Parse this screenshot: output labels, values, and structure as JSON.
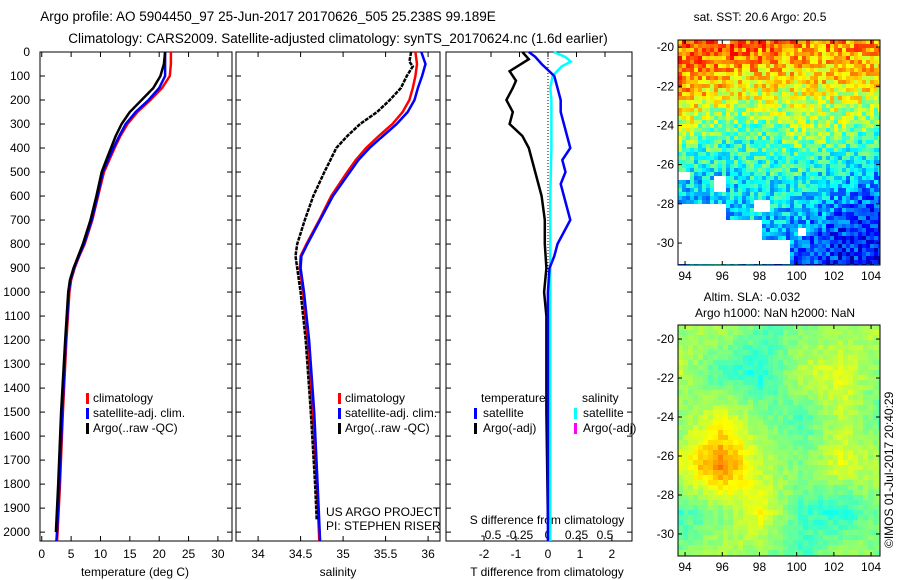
{
  "title": {
    "line1": "Argo profile: AO 5904450_97 25-Jun-2017 20170626_505 25.238S 99.189E",
    "line2": "Climatology: CARS2009. Satellite-adjusted climatology: synTS_20170624.nc (1.6d earlier)"
  },
  "stamp": "©IMOS 01-Jul-2017 20:40:29",
  "chart_data": [
    {
      "type": "line",
      "id": "temperature",
      "xlabel": "temperature (deg C)",
      "xlim": [
        -0.3,
        32.4
      ],
      "ylim": [
        0,
        2037
      ],
      "xticks": [
        0,
        5,
        10,
        15,
        20,
        25,
        30
      ],
      "yticks": [
        0,
        100,
        200,
        300,
        400,
        500,
        600,
        700,
        800,
        900,
        1000,
        1100,
        1200,
        1300,
        1400,
        1500,
        1600,
        1700,
        1800,
        1900,
        2000
      ],
      "legend": [
        {
          "label": "climatology",
          "color": "#ff0000"
        },
        {
          "label": "satellite-adj. clim.",
          "color": "#0000ff"
        },
        {
          "label": "Argo(..raw -QC)",
          "color": "#000000"
        }
      ],
      "series": [
        {
          "name": "climatology",
          "color": "#ff0000",
          "depth": [
            0,
            50,
            100,
            150,
            200,
            250,
            300,
            350,
            400,
            450,
            500,
            600,
            700,
            800,
            850,
            900,
            950,
            1000,
            1200,
            1500,
            1800,
            2000,
            2037
          ],
          "values": [
            22,
            22,
            21.8,
            20.5,
            18.5,
            16.3,
            14.6,
            13.4,
            12.4,
            11.5,
            10.6,
            9.6,
            8.6,
            7.3,
            6.4,
            5.6,
            5.0,
            4.7,
            4.2,
            3.6,
            3.1,
            2.7,
            2.6
          ]
        },
        {
          "name": "satellite-adj. clim.",
          "color": "#0000ff",
          "depth": [
            0,
            50,
            100,
            150,
            200,
            250,
            300,
            350,
            400,
            450,
            500,
            600,
            700,
            800,
            850,
            900,
            950,
            1000,
            1200,
            1500,
            1800,
            2000,
            2037
          ],
          "values": [
            21,
            21,
            21,
            20.0,
            18.2,
            16.0,
            14.3,
            13.2,
            12.2,
            11.3,
            10.4,
            9.5,
            8.5,
            7.2,
            6.3,
            5.5,
            4.9,
            4.6,
            4.1,
            3.5,
            3.0,
            2.6,
            2.5
          ]
        },
        {
          "name": "Argo",
          "color": "#000000",
          "depth": [
            0,
            50,
            100,
            150,
            200,
            250,
            300,
            350,
            400,
            450,
            500,
            600,
            700,
            800,
            850,
            900,
            950,
            1000,
            1200,
            1500,
            1800,
            2000
          ],
          "values": [
            21,
            20.8,
            20.2,
            19.0,
            17.0,
            15.0,
            13.6,
            12.6,
            11.8,
            11.0,
            10.2,
            9.3,
            8.3,
            7.0,
            6.2,
            5.4,
            4.8,
            4.5,
            4.0,
            3.3,
            2.8,
            2.4
          ]
        }
      ]
    },
    {
      "type": "line",
      "id": "salinity",
      "xlabel": "salinity",
      "xlim": [
        33.74,
        36.14
      ],
      "ylim": [
        0,
        2037
      ],
      "xticks": [
        34,
        34.5,
        35,
        35.5,
        36
      ],
      "xticklabels": [
        "34",
        "34.5",
        "35",
        "35.5",
        "36"
      ],
      "legend": [
        {
          "label": "climatology",
          "color": "#ff0000"
        },
        {
          "label": "satellite-adj. clim.",
          "color": "#0000ff"
        },
        {
          "label": "Argo(..raw -QC)",
          "color": "#000000"
        }
      ],
      "annotations": [
        "US ARGO PROJECT",
        "PI: STEPHEN RISER"
      ],
      "series": [
        {
          "name": "climatology",
          "color": "#ff0000",
          "depth": [
            0,
            50,
            100,
            150,
            200,
            250,
            300,
            350,
            400,
            450,
            500,
            600,
            700,
            800,
            850,
            900,
            1000,
            1200,
            1500,
            1800,
            2037
          ],
          "values": [
            35.85,
            35.87,
            35.85,
            35.82,
            35.78,
            35.7,
            35.58,
            35.42,
            35.27,
            35.15,
            35.05,
            34.86,
            34.72,
            34.57,
            34.5,
            34.49,
            34.53,
            34.58,
            34.64,
            34.69,
            34.72
          ]
        },
        {
          "name": "satellite-adj. clim.",
          "color": "#0000ff",
          "depth": [
            0,
            50,
            100,
            150,
            200,
            250,
            300,
            350,
            400,
            450,
            500,
            600,
            700,
            800,
            850,
            900,
            1000,
            1200,
            1500,
            1800,
            2037
          ],
          "values": [
            35.92,
            35.97,
            35.93,
            35.88,
            35.84,
            35.76,
            35.63,
            35.47,
            35.31,
            35.18,
            35.08,
            34.88,
            34.73,
            34.58,
            34.51,
            34.5,
            34.54,
            34.6,
            34.66,
            34.7,
            34.73
          ]
        },
        {
          "name": "Argo",
          "color": "#000000",
          "depth": [
            0,
            40,
            60,
            100,
            150,
            200,
            250,
            300,
            350,
            400,
            450,
            500,
            600,
            700,
            800,
            850,
            900,
            1000,
            1200,
            1500,
            1800,
            1950
          ],
          "values": [
            35.8,
            35.78,
            35.82,
            35.75,
            35.68,
            35.55,
            35.4,
            35.2,
            35.05,
            34.92,
            34.85,
            34.78,
            34.65,
            34.55,
            34.46,
            34.44,
            34.46,
            34.5,
            34.56,
            34.62,
            34.67,
            34.69
          ]
        }
      ]
    },
    {
      "type": "line",
      "id": "difference",
      "xlabel": "T difference from climatology",
      "x2label": "S difference from climatology",
      "xlim": [
        -3.19,
        2.63
      ],
      "xticks": [
        -2,
        -1,
        0,
        1,
        2
      ],
      "x2ticks": [
        -0.5,
        -0.25,
        0,
        0.25,
        0.5
      ],
      "x2ticklabels": [
        "-0.5",
        "-0.25",
        "0",
        "0.25",
        "0.5"
      ],
      "legend": {
        "temperature": {
          "heading": "temperature",
          "items": [
            {
              "label": "satellite",
              "color": "#0000ff"
            },
            {
              "label": "Argo(-adj)",
              "color": "#000000"
            }
          ]
        },
        "salinity": {
          "heading": "salinity",
          "items": [
            {
              "label": "satellite",
              "color": "#00ffff"
            },
            {
              "label": "Argo(-adj)",
              "color": "#ff00ff"
            }
          ]
        }
      },
      "series": [
        {
          "name": "S satellite",
          "unit": "S",
          "color": "#00ffff",
          "depth": [
            0,
            20,
            40,
            60,
            100,
            150,
            200,
            400,
            600,
            800,
            1000,
            1500,
            2037
          ],
          "values": [
            0.05,
            0.15,
            0.2,
            0.12,
            0.04,
            0.02,
            0.03,
            0.03,
            0.02,
            0.02,
            0.02,
            0.02,
            0.02
          ]
        },
        {
          "name": "T Argo",
          "unit": "T",
          "color": "#000000",
          "depth": [
            0,
            30,
            80,
            120,
            150,
            200,
            250,
            300,
            350,
            400,
            450,
            500,
            600,
            700,
            800,
            900,
            1000,
            1100,
            1500,
            1950
          ],
          "values": [
            -0.8,
            -0.6,
            -1.2,
            -1.0,
            -1.1,
            -1.3,
            -1.1,
            -1.2,
            -0.8,
            -0.6,
            -0.5,
            -0.4,
            -0.2,
            -0.1,
            -0.1,
            -0.05,
            -0.12,
            -0.05,
            -0.05,
            0
          ]
        },
        {
          "name": "T satellite",
          "unit": "T",
          "color": "#0000ff",
          "depth": [
            0,
            20,
            50,
            100,
            150,
            200,
            250,
            300,
            350,
            400,
            450,
            500,
            550,
            600,
            650,
            700,
            750,
            800,
            850,
            900,
            1000,
            1200,
            1500,
            2037
          ],
          "values": [
            -0.6,
            -0.4,
            -0.2,
            0.2,
            0.3,
            0.4,
            0.4,
            0.5,
            0.6,
            0.7,
            0.45,
            0.55,
            0.4,
            0.5,
            0.6,
            0.7,
            0.5,
            0.3,
            0.2,
            0.05,
            0,
            0,
            0,
            0
          ]
        }
      ]
    },
    {
      "type": "heatmap",
      "id": "sst-map",
      "title": "sat. SST: 20.6  Argo: 20.5",
      "lonlim": [
        93.62,
        104.48
      ],
      "latlim": [
        -31.12,
        -19.64
      ],
      "lonticks": [
        94,
        96,
        98,
        100,
        102,
        104
      ],
      "latticks": [
        -20,
        -22,
        -24,
        -26,
        -28,
        -30
      ],
      "noise": 0.12,
      "grid": [
        [
          0.78,
          0.82,
          0.78,
          0.74,
          0.74,
          0.72
        ],
        [
          0.72,
          0.66,
          0.62,
          0.62,
          0.64,
          0.62
        ],
        [
          0.55,
          0.46,
          0.45,
          0.52,
          0.5,
          0.46
        ],
        [
          0.36,
          0.35,
          0.4,
          0.4,
          0.34,
          0.28
        ],
        [
          0.3,
          0.3,
          0.34,
          0.28,
          0.2,
          0.15
        ],
        [
          0.3,
          0.34,
          0.3,
          0.2,
          0.14,
          0.14
        ]
      ],
      "missing": [
        [
          93.62,
          96.3,
          -28.0,
          -31.12
        ],
        [
          96.3,
          98.2,
          -28.9,
          -31.12
        ],
        [
          98.2,
          99.6,
          -29.8,
          -31.12
        ],
        [
          95.5,
          96.3,
          -26.6,
          -27.3
        ],
        [
          97.8,
          98.6,
          -27.8,
          -28.4
        ],
        [
          100.0,
          100.5,
          -29.2,
          -29.7
        ],
        [
          93.62,
          94.3,
          -26.3,
          -26.7
        ],
        [
          95.8,
          96.5,
          -19.64,
          -19.9
        ]
      ]
    },
    {
      "type": "heatmap",
      "id": "sla-map",
      "title": "Altim. SLA: -0.032",
      "subtitle": "Argo h1000: NaN h2000: NaN",
      "lonlim": [
        93.62,
        104.48
      ],
      "latlim": [
        -31.13,
        -19.28
      ],
      "lonticks": [
        94,
        96,
        98,
        100,
        102,
        104
      ],
      "latticks": [
        -20,
        -22,
        -24,
        -26,
        -28,
        -30
      ],
      "noise": 0.03,
      "grid": [
        [
          0.52,
          0.56,
          0.46,
          0.5,
          0.52,
          0.56
        ],
        [
          0.56,
          0.44,
          0.4,
          0.56,
          0.6,
          0.5
        ],
        [
          0.5,
          0.62,
          0.52,
          0.44,
          0.56,
          0.46
        ],
        [
          0.6,
          0.76,
          0.56,
          0.5,
          0.6,
          0.55
        ],
        [
          0.44,
          0.5,
          0.62,
          0.44,
          0.4,
          0.5
        ],
        [
          0.5,
          0.56,
          0.5,
          0.44,
          0.56,
          0.5
        ]
      ],
      "missing": []
    }
  ]
}
